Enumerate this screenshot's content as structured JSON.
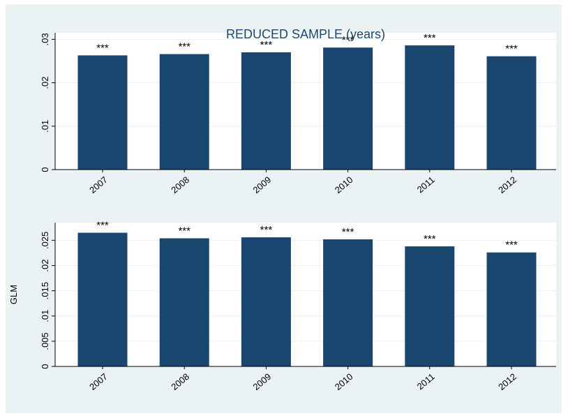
{
  "chart_data": [
    {
      "type": "bar",
      "title": "REDUCED SAMPLE (years)",
      "ylabel": "",
      "categories": [
        "2007",
        "2008",
        "2009",
        "2010",
        "2011",
        "2012"
      ],
      "values": [
        0.0263,
        0.0266,
        0.027,
        0.0281,
        0.0286,
        0.0261
      ],
      "bar_labels": [
        "***",
        "***",
        "***",
        "***",
        "***",
        "***"
      ],
      "ylim": [
        0,
        0.0315
      ],
      "yticks": [
        0,
        0.01,
        0.02,
        0.03
      ],
      "ytick_labels": [
        "0",
        ".01",
        ".02",
        ".03"
      ],
      "grid": true,
      "bar_color": "#1a476f"
    },
    {
      "type": "bar",
      "title": "",
      "ylabel": "GLM",
      "categories": [
        "2007",
        "2008",
        "2009",
        "2010",
        "2011",
        "2012"
      ],
      "values": [
        0.0265,
        0.0254,
        0.0256,
        0.0252,
        0.0238,
        0.0226
      ],
      "bar_labels": [
        "***",
        "***",
        "***",
        "***",
        "***",
        "***"
      ],
      "ylim": [
        0,
        0.0285
      ],
      "yticks": [
        0,
        0.005,
        0.01,
        0.015,
        0.02,
        0.025
      ],
      "ytick_labels": [
        "0",
        ".005",
        ".01",
        ".015",
        ".02",
        ".025"
      ],
      "grid": true,
      "bar_color": "#1a476f"
    }
  ],
  "colors": {
    "background": "#eaf2f3",
    "plot_background": "#ffffff",
    "bar": "#1a476f",
    "title": "#1a476f"
  }
}
